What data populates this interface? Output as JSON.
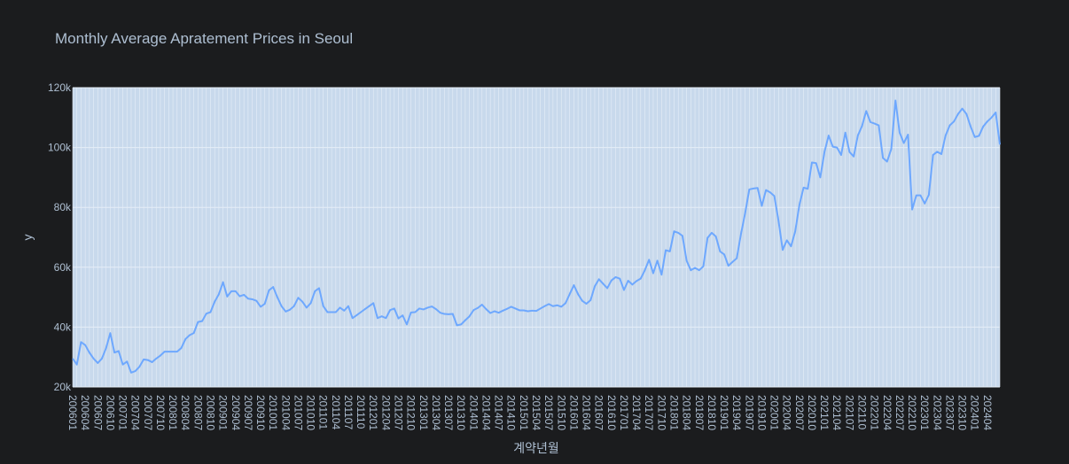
{
  "chart_data": {
    "type": "line",
    "title": "Monthly Average Apratement Prices in Seoul",
    "xlabel": "계약년월",
    "ylabel": "y",
    "ylim": [
      20000,
      120000
    ],
    "yticks": [
      {
        "value": 20000,
        "label": "20k"
      },
      {
        "value": 40000,
        "label": "40k"
      },
      {
        "value": 60000,
        "label": "60k"
      },
      {
        "value": 80000,
        "label": "80k"
      },
      {
        "value": 100000,
        "label": "100k"
      },
      {
        "value": 120000,
        "label": "120k"
      }
    ],
    "x_start": "2006-01",
    "x_tick_labels": [
      "200601",
      "200604",
      "200607",
      "200610",
      "200701",
      "200704",
      "200707",
      "200710",
      "200801",
      "200804",
      "200807",
      "200810",
      "200901",
      "200904",
      "200907",
      "200910",
      "201001",
      "201004",
      "201007",
      "201010",
      "201101",
      "201104",
      "201107",
      "201110",
      "201201",
      "201204",
      "201207",
      "201210",
      "201301",
      "201304",
      "201307",
      "201310",
      "201401",
      "201404",
      "201407",
      "201410",
      "201501",
      "201504",
      "201507",
      "201510",
      "201601",
      "201604",
      "201607",
      "201610",
      "201701",
      "201704",
      "201707",
      "201710",
      "201801",
      "201804",
      "201807",
      "201810",
      "201901",
      "201904",
      "201907",
      "201910",
      "202001",
      "202004",
      "202007",
      "202010",
      "202101",
      "202104",
      "202107",
      "202110",
      "202201",
      "202204",
      "202207",
      "202210",
      "202301",
      "202304",
      "202307",
      "202310",
      "202401",
      "202404"
    ],
    "grid": true,
    "colors": {
      "line": "#6ea8fe",
      "plot_bg": "#c8d9ec",
      "grid": "#e6eef8",
      "page_bg": "#1b1c1e"
    },
    "series": [
      {
        "values": [
          29500,
          27500,
          35000,
          34000,
          31500,
          29500,
          28000,
          29500,
          33000,
          38000,
          31500,
          32000,
          27500,
          28500,
          24800,
          25300,
          26800,
          29200,
          29000,
          28300,
          29500,
          30500,
          31800,
          31800,
          31800,
          31800,
          33000,
          36000,
          37300,
          38000,
          41700,
          42000,
          44500,
          45000,
          48500,
          51000,
          55000,
          50200,
          52000,
          52000,
          50300,
          50800,
          49500,
          49300,
          48800,
          46800,
          47800,
          52300,
          53400,
          50000,
          47000,
          45200,
          45800,
          47000,
          49800,
          48500,
          46500,
          48000,
          52000,
          53000,
          47000,
          45000,
          45000,
          45000,
          46500,
          45500,
          47000,
          43000,
          44000,
          45000,
          46000,
          47000,
          48000,
          43000,
          43600,
          43000,
          45700,
          46200,
          42900,
          43900,
          40900,
          44900,
          45000,
          46200,
          45900,
          46500,
          46900,
          46000,
          44800,
          44400,
          44300,
          44400,
          40600,
          40900,
          42300,
          43600,
          45700,
          46400,
          47500,
          46000,
          44700,
          45300,
          44800,
          45500,
          46100,
          46800,
          46200,
          45600,
          45600,
          45300,
          45500,
          45400,
          46200,
          47000,
          47700,
          47000,
          47300,
          46800,
          48000,
          51000,
          54000,
          51000,
          48800,
          47800,
          49000,
          53600,
          56000,
          54500,
          53000,
          55600,
          56700,
          56200,
          52400,
          55500,
          54200,
          55400,
          56200,
          59000,
          62500,
          58000,
          62200,
          57500,
          65700,
          65300,
          72000,
          71500,
          70500,
          62200,
          59000,
          59800,
          59000,
          60300,
          69800,
          71500,
          70300,
          65300,
          64300,
          60500,
          61800,
          63000,
          71000,
          78000,
          86000,
          86300,
          86500,
          80500,
          85800,
          85000,
          83800,
          75500,
          65800,
          69000,
          67000,
          72000,
          80800,
          86600,
          86200,
          95000,
          94800,
          90000,
          98500,
          104000,
          100300,
          100000,
          97500,
          105000,
          98500,
          97000,
          104000,
          107200,
          112200,
          108500,
          108000,
          107400,
          96500,
          95300,
          99500,
          115700,
          105000,
          101500,
          104300,
          79300,
          84000,
          84000,
          81300,
          84200,
          97500,
          98600,
          97800,
          104000,
          107400,
          108700,
          111200,
          113000,
          111200,
          107000,
          103500,
          103900,
          107000,
          108700,
          110000,
          111700,
          101000
        ]
      }
    ]
  }
}
